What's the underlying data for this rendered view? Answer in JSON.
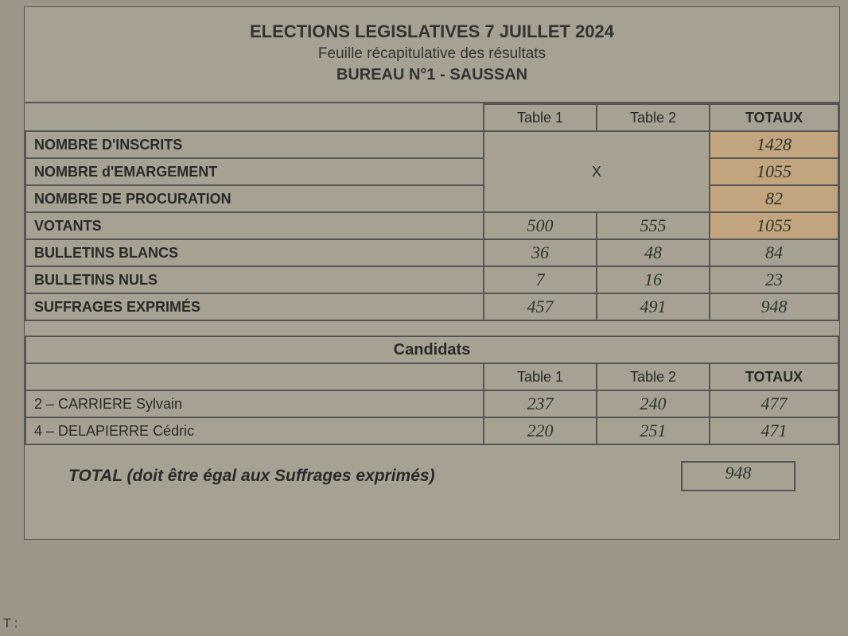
{
  "header": {
    "line1": "ELECTIONS LEGISLATIVES 7 JUILLET 2024",
    "line2": "Feuille récapitulative des résultats",
    "line3": "BUREAU N°1 - SAUSSAN"
  },
  "columns": {
    "t1": "Table 1",
    "t2": "Table 2",
    "tot": "TOTAUX"
  },
  "rows": {
    "inscrits": {
      "label": "NOMBRE D'INSCRITS",
      "tot": "1428"
    },
    "emargement": {
      "label": "NOMBRE d'EMARGEMENT",
      "tot": "1055"
    },
    "procuration": {
      "label": "NOMBRE DE PROCURATION",
      "tot": "82"
    },
    "x_marker": "X",
    "votants": {
      "label": "VOTANTS",
      "t1": "500",
      "t2": "555",
      "tot": "1055"
    },
    "blancs": {
      "label": "BULLETINS BLANCS",
      "t1": "36",
      "t2": "48",
      "tot": "84"
    },
    "nuls": {
      "label": "BULLETINS NULS",
      "t1": "7",
      "t2": "16",
      "tot": "23"
    },
    "exprimes": {
      "label": "SUFFRAGES EXPRIMÉS",
      "t1": "457",
      "t2": "491",
      "tot": "948"
    }
  },
  "candidates": {
    "heading": "Candidats",
    "columns": {
      "t1": "Table 1",
      "t2": "Table 2",
      "tot": "TOTAUX"
    },
    "list": [
      {
        "label": "2 – CARRIERE Sylvain",
        "t1": "237",
        "t2": "240",
        "tot": "477"
      },
      {
        "label": "4 – DELAPIERRE Cédric",
        "t1": "220",
        "t2": "251",
        "tot": "471"
      }
    ]
  },
  "total_line": {
    "label": "TOTAL (doit être égal aux Suffrages exprimés)",
    "value": "948"
  },
  "footer_fragment": "T :",
  "style": {
    "paper_bg": "#a6a193",
    "border_color": "#555555",
    "ink_color": "#2a2a2a",
    "hand_color": "#2b362c",
    "tan_highlight": "#c2a57e",
    "hand_font": "Comic Sans MS",
    "print_font": "Arial"
  }
}
